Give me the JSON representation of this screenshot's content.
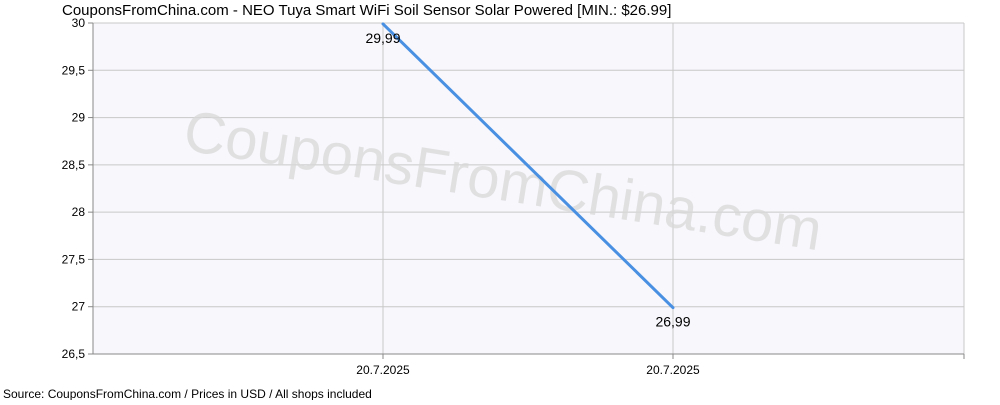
{
  "chart_data": {
    "type": "line",
    "title": "CouponsFromChina.com - NEO Tuya Smart WiFi Soil Sensor Solar Powered [MIN.: $26.99]",
    "xlabel": "",
    "ylabel": "",
    "categories": [
      "20.7.2025",
      "20.7.2025"
    ],
    "series": [
      {
        "values": [
          29.99,
          26.99
        ],
        "data_labels": [
          "29,99",
          "26,99"
        ],
        "color": "#4a90e2"
      }
    ],
    "ylim": [
      26.5,
      30
    ],
    "y_ticks": [
      26.5,
      27,
      27.5,
      28,
      28.5,
      29,
      29.5,
      30
    ],
    "y_tick_labels": [
      "26,5",
      "27",
      "27,5",
      "28",
      "28,5",
      "29",
      "29,5",
      "30"
    ],
    "grid": true,
    "plot_background": "#f7f7fc",
    "grid_color": "#c8c8c8",
    "watermark": "CouponsFromChina.com",
    "footer": "Source: CouponsFromChina.com / Prices in USD / All shops included"
  }
}
